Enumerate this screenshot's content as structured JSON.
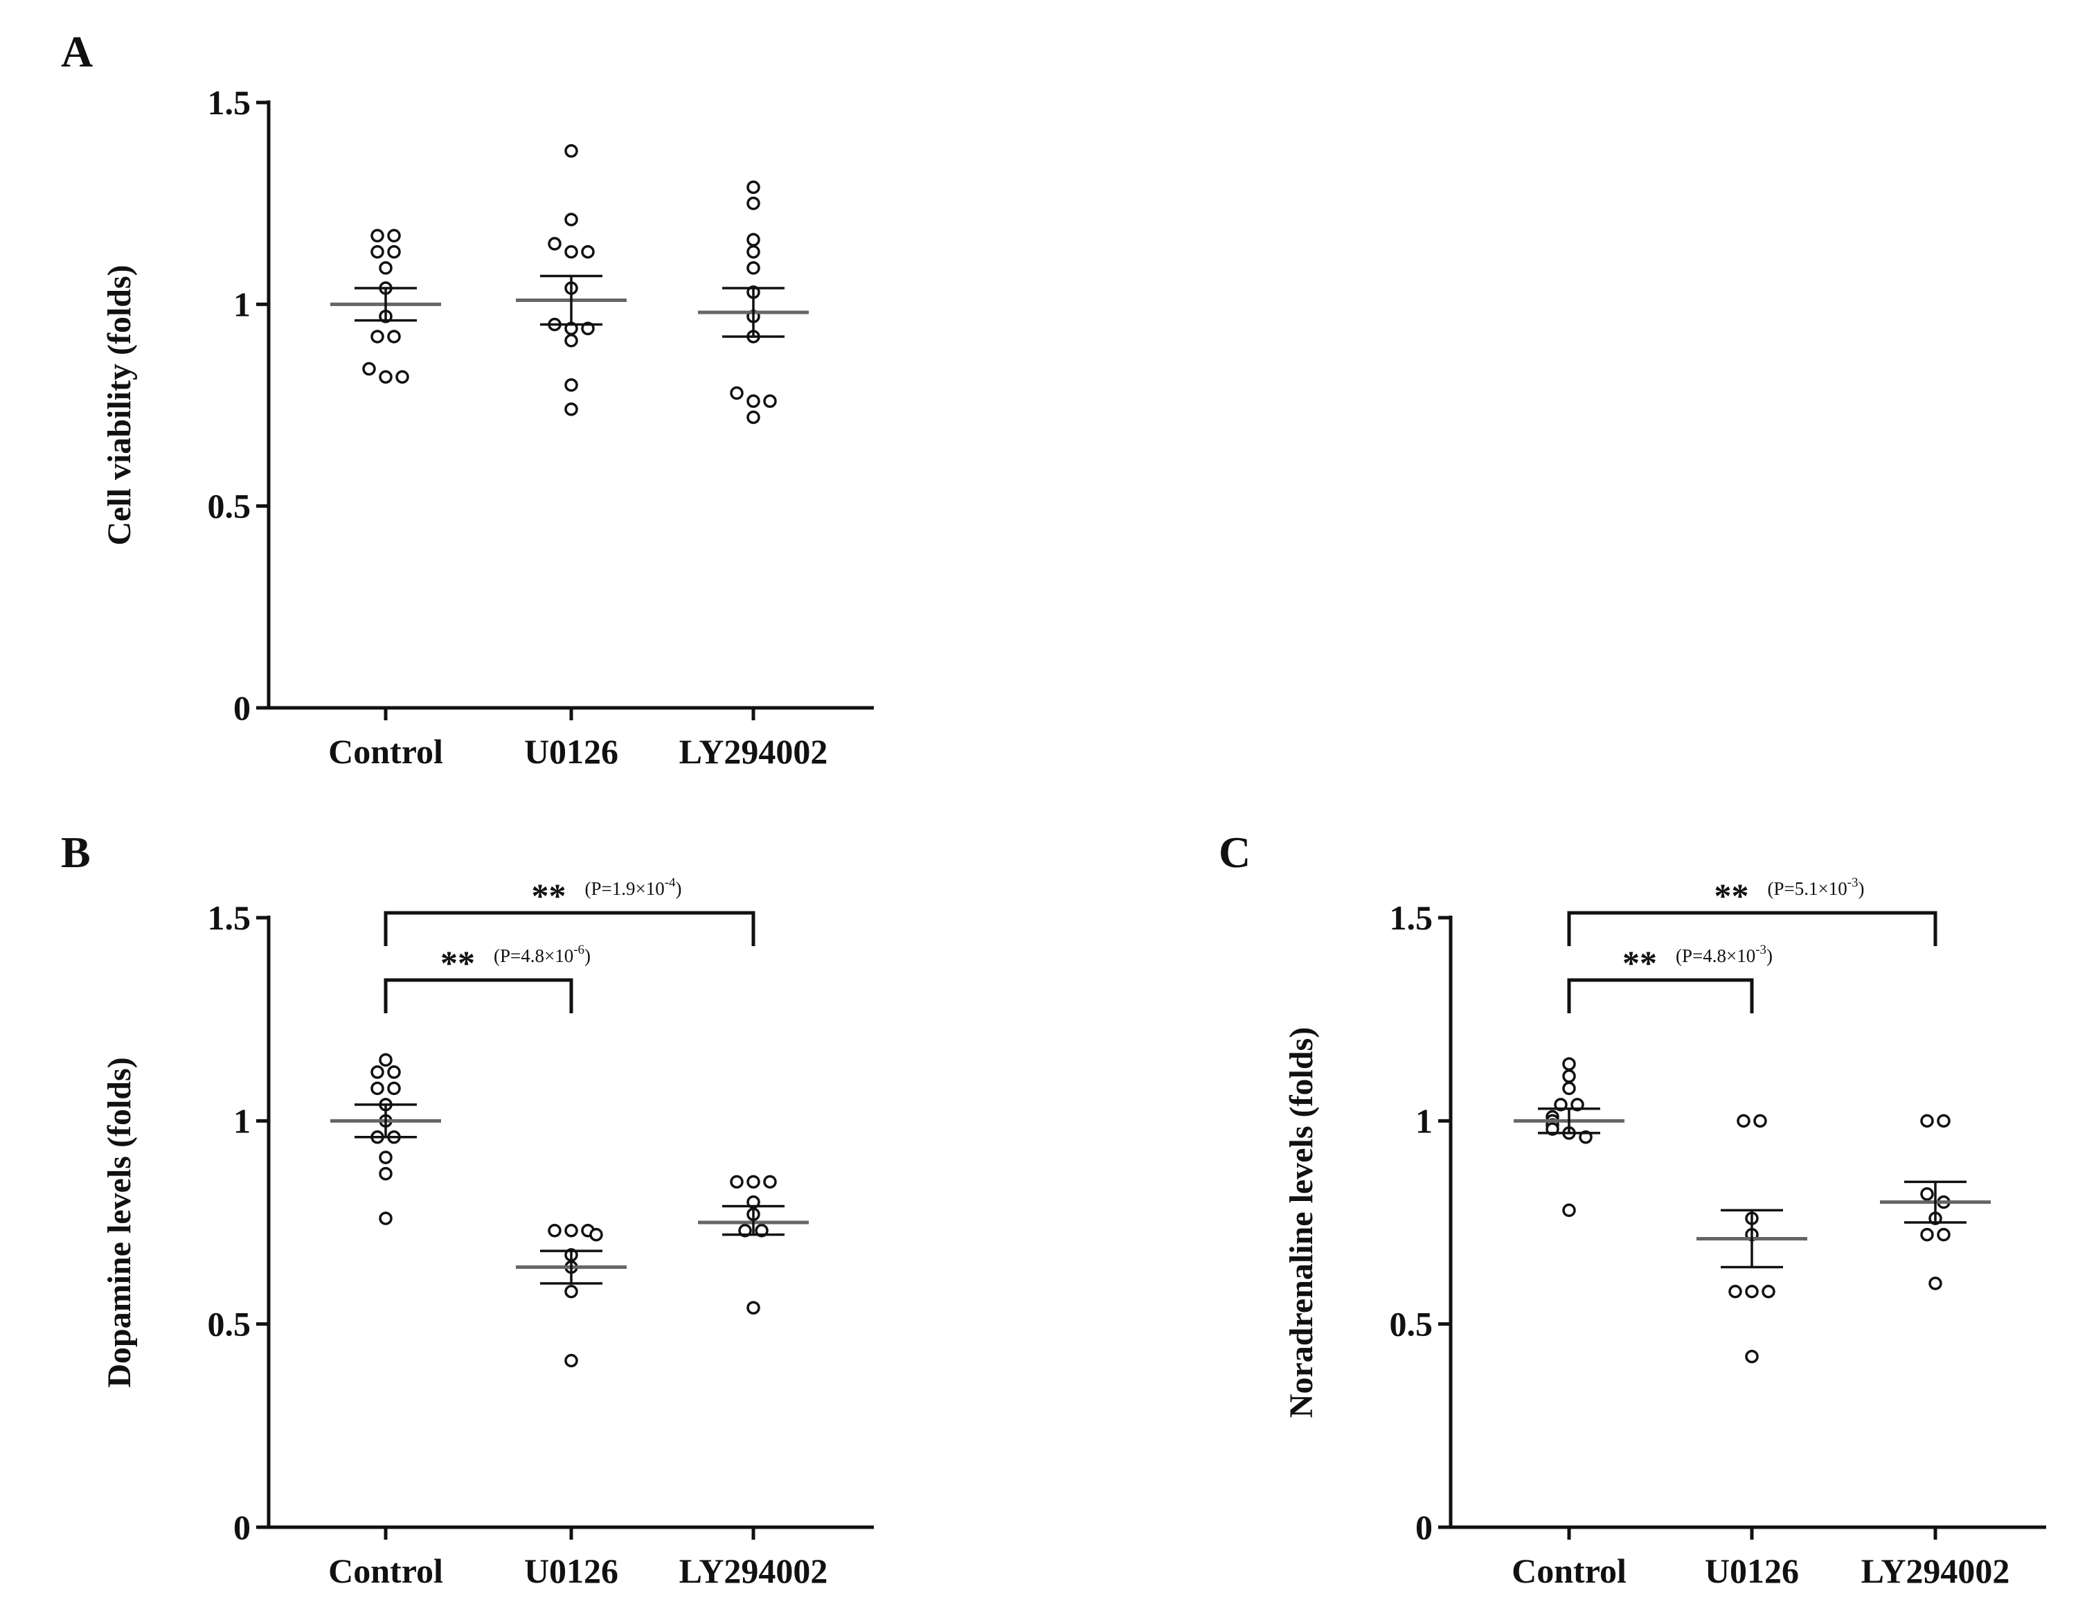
{
  "chart_data": [
    {
      "type": "scatter",
      "panel": "A",
      "title": "",
      "xlabel": "",
      "ylabel": "Cell viability (folds)",
      "ylim": [
        0,
        1.5
      ],
      "yticks": [
        0,
        0.5,
        1,
        1.5
      ],
      "ytick_labels": [
        "0",
        "0.5",
        "1",
        "1.5"
      ],
      "categories": [
        "Control",
        "U0126",
        "LY294002"
      ],
      "series": [
        {
          "name": "Control",
          "values": [
            1.17,
            1.17,
            1.13,
            1.13,
            1.09,
            1.04,
            0.97,
            0.92,
            0.92,
            0.84,
            0.82,
            0.82
          ],
          "mean": 1.0,
          "sem_low": 0.96,
          "sem_high": 1.04
        },
        {
          "name": "U0126",
          "values": [
            1.38,
            1.21,
            1.15,
            1.13,
            1.13,
            1.04,
            0.95,
            0.94,
            0.94,
            0.91,
            0.8,
            0.74
          ],
          "mean": 1.01,
          "sem_low": 0.95,
          "sem_high": 1.07
        },
        {
          "name": "LY294002",
          "values": [
            1.29,
            1.25,
            1.16,
            1.13,
            1.09,
            1.03,
            0.97,
            0.92,
            0.78,
            0.76,
            0.76,
            0.72
          ],
          "mean": 0.98,
          "sem_low": 0.92,
          "sem_high": 1.04
        }
      ],
      "annotations": []
    },
    {
      "type": "scatter",
      "panel": "B",
      "title": "",
      "xlabel": "",
      "ylabel": "Dopamine levels (folds)",
      "ylim": [
        0,
        1.5
      ],
      "yticks": [
        0,
        0.5,
        1,
        1.5
      ],
      "ytick_labels": [
        "0",
        "0.5",
        "1",
        "1.5"
      ],
      "categories": [
        "Control",
        "U0126",
        "LY294002"
      ],
      "series": [
        {
          "name": "Control",
          "values": [
            1.15,
            1.12,
            1.12,
            1.08,
            1.08,
            1.04,
            1.0,
            0.96,
            0.96,
            0.91,
            0.87,
            0.76
          ],
          "mean": 1.0,
          "sem_low": 0.96,
          "sem_high": 1.04
        },
        {
          "name": "U0126",
          "values": [
            0.73,
            0.73,
            0.73,
            0.72,
            0.67,
            0.64,
            0.58,
            0.41
          ],
          "mean": 0.64,
          "sem_low": 0.6,
          "sem_high": 0.68
        },
        {
          "name": "LY294002",
          "values": [
            0.85,
            0.85,
            0.85,
            0.8,
            0.77,
            0.73,
            0.73,
            0.54
          ],
          "mean": 0.75,
          "sem_low": 0.72,
          "sem_high": 0.79
        }
      ],
      "annotations": [
        {
          "from": "Control",
          "to": "U0126",
          "stars": "**",
          "p_prefix": "(P=4.8×10",
          "p_exp": "-6",
          "p_suffix": ")"
        },
        {
          "from": "Control",
          "to": "LY294002",
          "stars": "**",
          "p_prefix": "(P=1.9×10",
          "p_exp": "-4",
          "p_suffix": ")"
        }
      ]
    },
    {
      "type": "scatter",
      "panel": "C",
      "title": "",
      "xlabel": "",
      "ylabel": "Noradrenaline levels (folds)",
      "ylim": [
        0,
        1.5
      ],
      "yticks": [
        0,
        0.5,
        1,
        1.5
      ],
      "ytick_labels": [
        "0",
        "0.5",
        "1",
        "1.5"
      ],
      "categories": [
        "Control",
        "U0126",
        "LY294002"
      ],
      "series": [
        {
          "name": "Control",
          "values": [
            1.14,
            1.11,
            1.08,
            1.04,
            1.04,
            1.01,
            1.0,
            0.99,
            0.98,
            0.97,
            0.96,
            0.78
          ],
          "mean": 1.0,
          "sem_low": 0.97,
          "sem_high": 1.03
        },
        {
          "name": "U0126",
          "values": [
            1.0,
            1.0,
            0.76,
            0.72,
            0.58,
            0.58,
            0.58,
            0.42
          ],
          "mean": 0.71,
          "sem_low": 0.64,
          "sem_high": 0.78
        },
        {
          "name": "LY294002",
          "values": [
            1.0,
            1.0,
            0.82,
            0.8,
            0.76,
            0.72,
            0.72,
            0.6
          ],
          "mean": 0.8,
          "sem_low": 0.75,
          "sem_high": 0.85
        }
      ],
      "annotations": [
        {
          "from": "Control",
          "to": "U0126",
          "stars": "**",
          "p_prefix": "(P=4.8×10",
          "p_exp": "-3",
          "p_suffix": ")"
        },
        {
          "from": "Control",
          "to": "LY294002",
          "stars": "**",
          "p_prefix": "(P=5.1×10",
          "p_exp": "-3",
          "p_suffix": ")"
        }
      ]
    }
  ]
}
